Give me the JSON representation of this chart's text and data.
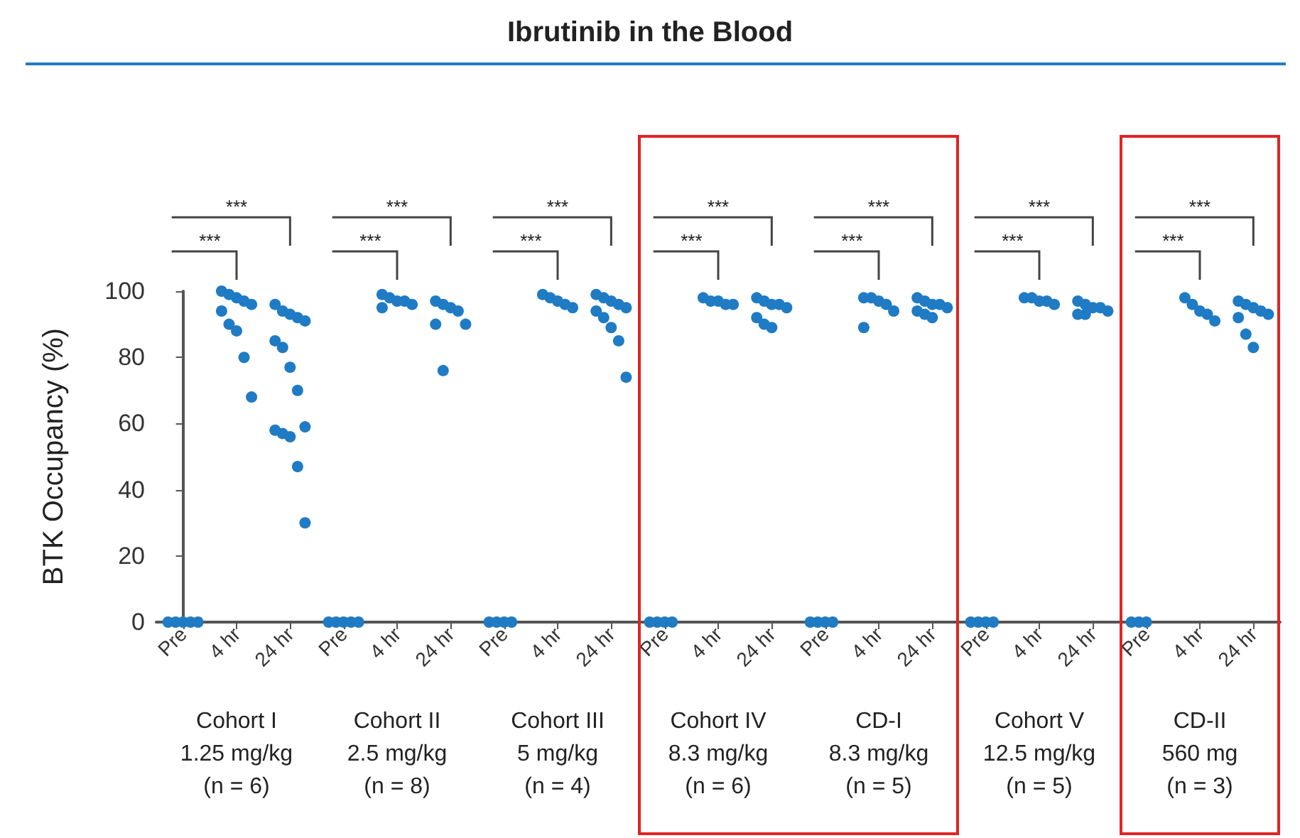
{
  "chart_data": {
    "type": "scatter",
    "title": "Ibrutinib in the Blood",
    "ylabel": "BTK Occupancy (%)",
    "categories": [
      "Pre",
      "4 hr",
      "24 hr",
      "Pre",
      "4 hr",
      "24 hr",
      "Pre",
      "4 hr",
      "24 hr",
      "Pre",
      "4 hr",
      "24 hr",
      "Pre",
      "4 hr",
      "24 hr",
      "Pre",
      "4 hr",
      "24 hr",
      "Pre",
      "4 hr",
      "24 hr"
    ],
    "series": [
      {
        "color": "#1f7bc4",
        "values": [
          0,
          100,
          96,
          0,
          99,
          97,
          0,
          99,
          99,
          0,
          98,
          98,
          0,
          98,
          98,
          0,
          98,
          97,
          0,
          98,
          97
        ]
      },
      {
        "color": "#1f7bc4",
        "values": [
          0,
          99,
          94,
          0,
          98,
          96,
          0,
          98,
          98,
          0,
          97,
          97,
          0,
          98,
          97,
          0,
          98,
          96,
          0,
          96,
          96
        ]
      },
      {
        "color": "#1f7bc4",
        "values": [
          0,
          98,
          93,
          0,
          97,
          95,
          0,
          97,
          97,
          0,
          97,
          96,
          0,
          97,
          96,
          0,
          97,
          95,
          0,
          94,
          95
        ]
      },
      {
        "color": "#1f7bc4",
        "values": [
          0,
          97,
          92,
          0,
          97,
          94,
          0,
          96,
          96,
          0,
          96,
          96,
          0,
          96,
          96,
          0,
          97,
          95,
          null,
          93,
          94
        ]
      },
      {
        "color": "#1f7bc4",
        "values": [
          0,
          96,
          91,
          0,
          96,
          90,
          null,
          95,
          95,
          null,
          96,
          95,
          null,
          94,
          95,
          null,
          96,
          94,
          null,
          91,
          93
        ]
      },
      {
        "color": "#1f7bc4",
        "values": [
          null,
          94,
          85,
          null,
          95,
          90,
          null,
          null,
          94,
          null,
          null,
          92,
          null,
          89,
          94,
          null,
          null,
          93,
          null,
          null,
          92
        ]
      },
      {
        "color": "#1f7bc4",
        "values": [
          null,
          90,
          83,
          null,
          null,
          76,
          null,
          null,
          92,
          null,
          null,
          90,
          null,
          null,
          93,
          null,
          null,
          93,
          null,
          null,
          87
        ]
      },
      {
        "color": "#1f7bc4",
        "values": [
          null,
          88,
          77,
          null,
          null,
          null,
          null,
          null,
          89,
          null,
          null,
          89,
          null,
          null,
          92,
          null,
          null,
          null,
          null,
          null,
          83
        ]
      },
      {
        "color": "#1f7bc4",
        "values": [
          null,
          80,
          70,
          null,
          null,
          null,
          null,
          null,
          85,
          null,
          null,
          null,
          null,
          null,
          null,
          null,
          null,
          null,
          null,
          null,
          null
        ]
      },
      {
        "color": "#1f7bc4",
        "values": [
          null,
          68,
          59,
          null,
          null,
          null,
          null,
          null,
          74,
          null,
          null,
          null,
          null,
          null,
          null,
          null,
          null,
          null,
          null,
          null,
          null
        ]
      },
      {
        "color": "#1f7bc4",
        "values": [
          null,
          null,
          58,
          null,
          null,
          null,
          null,
          null,
          null,
          null,
          null,
          null,
          null,
          null,
          null,
          null,
          null,
          null,
          null,
          null,
          null
        ]
      },
      {
        "color": "#1f7bc4",
        "values": [
          null,
          null,
          57,
          null,
          null,
          null,
          null,
          null,
          null,
          null,
          null,
          null,
          null,
          null,
          null,
          null,
          null,
          null,
          null,
          null,
          null
        ]
      },
      {
        "color": "#1f7bc4",
        "values": [
          null,
          null,
          56,
          null,
          null,
          null,
          null,
          null,
          null,
          null,
          null,
          null,
          null,
          null,
          null,
          null,
          null,
          null,
          null,
          null,
          null
        ]
      },
      {
        "color": "#1f7bc4",
        "values": [
          null,
          null,
          47,
          null,
          null,
          null,
          null,
          null,
          null,
          null,
          null,
          null,
          null,
          null,
          null,
          null,
          null,
          null,
          null,
          null,
          null
        ]
      },
      {
        "color": "#1f7bc4",
        "values": [
          null,
          null,
          30,
          null,
          null,
          null,
          null,
          null,
          null,
          null,
          null,
          null,
          null,
          null,
          null,
          null,
          null,
          null,
          null,
          null,
          null
        ]
      }
    ],
    "marker": "circle",
    "ylim": [
      0,
      100
    ],
    "yticks": [
      0,
      20,
      40,
      60,
      80,
      100
    ],
    "grid": false,
    "annotations": [
      "Cohort I",
      "1.25 mg/kg",
      "(n = 6)",
      "***",
      "***",
      "Cohort II",
      "2.5 mg/kg",
      "(n = 8)",
      "***",
      "***",
      "Cohort III",
      "5 mg/kg",
      "(n = 4)",
      "***",
      "***",
      "Cohort IV",
      "8.3 mg/kg",
      "(n = 6)",
      "***",
      "***",
      "CD-I",
      "8.3 mg/kg",
      "(n = 5)",
      "***",
      "***",
      "Cohort V",
      "12.5 mg/kg",
      "(n = 5)",
      "***",
      "***",
      "CD-II",
      "560 mg",
      "(n = 3)",
      "***",
      "***"
    ]
  }
}
